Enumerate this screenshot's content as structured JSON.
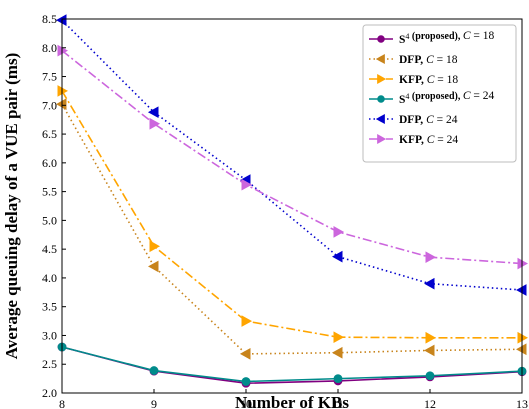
{
  "chart_data": {
    "type": "line",
    "xlabel": "Number of KBs",
    "ylabel": "Average queuing delay of a VUE pair (ms)",
    "xlim": [
      8,
      13
    ],
    "ylim": [
      2.0,
      8.5
    ],
    "x_ticks": [
      8,
      9,
      10,
      11,
      12,
      13
    ],
    "y_ticks": [
      2.0,
      2.5,
      3.0,
      3.5,
      4.0,
      4.5,
      5.0,
      5.5,
      6.0,
      6.5,
      7.0,
      7.5,
      8.0,
      8.5
    ],
    "legend_position": "top-right",
    "grid": false,
    "x": [
      8,
      9,
      10,
      11,
      12,
      13
    ],
    "series": [
      {
        "name_main": "S",
        "name_sup": "4",
        "name_rest": " (proposed), ",
        "name_var": "C",
        "name_eq": " = 18",
        "values": [
          2.8,
          2.38,
          2.17,
          2.21,
          2.28,
          2.37
        ],
        "color": "#800080",
        "dash": "solid",
        "marker": "circle"
      },
      {
        "name_main": "DFP, ",
        "name_sup": "",
        "name_rest": "",
        "name_var": "C",
        "name_eq": " = 18",
        "values": [
          7.02,
          4.2,
          2.68,
          2.7,
          2.74,
          2.76
        ],
        "color": "#c8841c",
        "dash": "dotted",
        "marker": "triangle-left"
      },
      {
        "name_main": "KFP, ",
        "name_sup": "",
        "name_rest": "",
        "name_var": "C",
        "name_eq": " = 18",
        "values": [
          7.25,
          4.55,
          3.25,
          2.97,
          2.96,
          2.96
        ],
        "color": "#ffa500",
        "dash": "dashdot",
        "marker": "triangle-right"
      },
      {
        "name_main": "S",
        "name_sup": "4",
        "name_rest": " (proposed), ",
        "name_var": "C",
        "name_eq": " = 24",
        "values": [
          2.8,
          2.39,
          2.2,
          2.25,
          2.3,
          2.38
        ],
        "color": "#008b8b",
        "dash": "solid",
        "marker": "circle"
      },
      {
        "name_main": "DFP, ",
        "name_sup": "",
        "name_rest": "",
        "name_var": "C",
        "name_eq": " = 24",
        "values": [
          8.48,
          6.88,
          5.7,
          4.37,
          3.9,
          3.79
        ],
        "color": "#0000cd",
        "dash": "dotted",
        "marker": "triangle-left"
      },
      {
        "name_main": "KFP, ",
        "name_sup": "",
        "name_rest": "",
        "name_var": "C",
        "name_eq": " = 24",
        "values": [
          7.95,
          6.68,
          5.62,
          4.8,
          4.36,
          4.25
        ],
        "color": "#cc66dd",
        "dash": "dashdot",
        "marker": "triangle-right"
      }
    ]
  }
}
